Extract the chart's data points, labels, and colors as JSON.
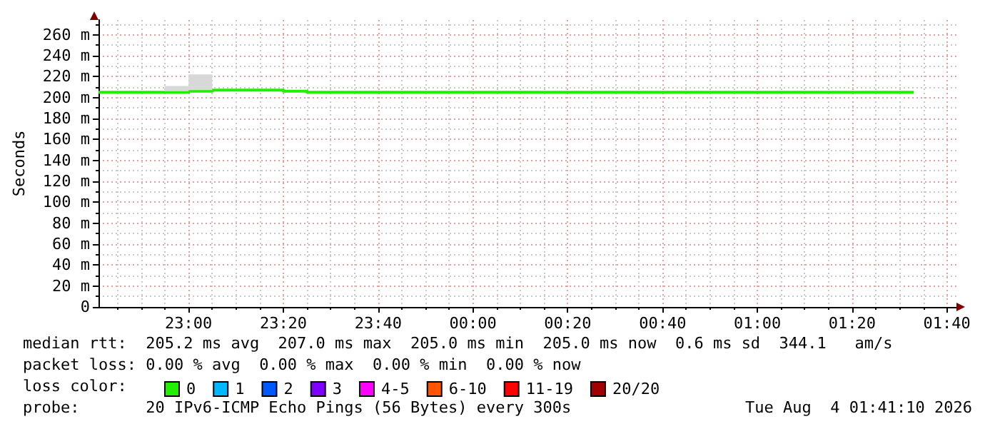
{
  "chart_data": {
    "type": "line",
    "ylabel": "Seconds",
    "legend_title": "loss color:",
    "x": [
      "2026-08-03T22:41",
      "2026-08-03T22:55",
      "2026-08-03T22:55",
      "2026-08-03T23:00",
      "2026-08-03T23:00",
      "2026-08-03T23:05",
      "2026-08-03T23:05",
      "2026-08-03T23:20",
      "2026-08-03T23:20",
      "2026-08-03T23:25",
      "2026-08-03T23:25",
      "2026-08-04T01:33"
    ],
    "series": [
      {
        "name": "0",
        "color": "#22ee00",
        "values": [
          205,
          205,
          205,
          205,
          206,
          206,
          207,
          207,
          206,
          206,
          205,
          205
        ],
        "lower": [
          null,
          null,
          206,
          206,
          207,
          207,
          null,
          null,
          null,
          null,
          null,
          null
        ],
        "upper": [
          null,
          null,
          211,
          211,
          222,
          222,
          null,
          null,
          null,
          null,
          null,
          null
        ]
      },
      {
        "name": "1",
        "color": "#00b8ff",
        "values": [
          null,
          null,
          null,
          null,
          null,
          null,
          null,
          null,
          null,
          null,
          null,
          null
        ]
      },
      {
        "name": "2",
        "color": "#0059ff",
        "values": [
          null,
          null,
          null,
          null,
          null,
          null,
          null,
          null,
          null,
          null,
          null,
          null
        ]
      },
      {
        "name": "3",
        "color": "#7e00ff",
        "values": [
          null,
          null,
          null,
          null,
          null,
          null,
          null,
          null,
          null,
          null,
          null,
          null
        ]
      },
      {
        "name": "4-5",
        "color": "#ff00ff",
        "values": [
          null,
          null,
          null,
          null,
          null,
          null,
          null,
          null,
          null,
          null,
          null,
          null
        ]
      },
      {
        "name": "6-10",
        "color": "#ff5500",
        "values": [
          null,
          null,
          null,
          null,
          null,
          null,
          null,
          null,
          null,
          null,
          null,
          null
        ]
      },
      {
        "name": "11-19",
        "color": "#ff0000",
        "values": [
          null,
          null,
          null,
          null,
          null,
          null,
          null,
          null,
          null,
          null,
          null,
          null
        ]
      },
      {
        "name": "20/20",
        "color": "#a10000",
        "values": [
          null,
          null,
          null,
          null,
          null,
          null,
          null,
          null,
          null,
          null,
          null,
          null
        ]
      }
    ],
    "xlim": [
      "2026-08-03T22:41",
      "2026-08-04T01:42"
    ],
    "xticks": [
      {
        "value": "2026-08-03T22:45",
        "label": null
      },
      {
        "value": "2026-08-03T22:50",
        "label": null
      },
      {
        "value": "2026-08-03T22:55",
        "label": null
      },
      {
        "value": "2026-08-03T23:00",
        "label": "23:00"
      },
      {
        "value": "2026-08-03T23:05",
        "label": null
      },
      {
        "value": "2026-08-03T23:10",
        "label": null
      },
      {
        "value": "2026-08-03T23:15",
        "label": null
      },
      {
        "value": "2026-08-03T23:20",
        "label": "23:20"
      },
      {
        "value": "2026-08-03T23:25",
        "label": null
      },
      {
        "value": "2026-08-03T23:30",
        "label": null
      },
      {
        "value": "2026-08-03T23:35",
        "label": null
      },
      {
        "value": "2026-08-03T23:40",
        "label": "23:40"
      },
      {
        "value": "2026-08-03T23:45",
        "label": null
      },
      {
        "value": "2026-08-03T23:50",
        "label": null
      },
      {
        "value": "2026-08-03T23:55",
        "label": null
      },
      {
        "value": "2026-08-04T00:00",
        "label": "00:00"
      },
      {
        "value": "2026-08-04T00:05",
        "label": null
      },
      {
        "value": "2026-08-04T00:10",
        "label": null
      },
      {
        "value": "2026-08-04T00:15",
        "label": null
      },
      {
        "value": "2026-08-04T00:20",
        "label": "00:20"
      },
      {
        "value": "2026-08-04T00:25",
        "label": null
      },
      {
        "value": "2026-08-04T00:30",
        "label": null
      },
      {
        "value": "2026-08-04T00:35",
        "label": null
      },
      {
        "value": "2026-08-04T00:40",
        "label": "00:40"
      },
      {
        "value": "2026-08-04T00:45",
        "label": null
      },
      {
        "value": "2026-08-04T00:50",
        "label": null
      },
      {
        "value": "2026-08-04T00:55",
        "label": null
      },
      {
        "value": "2026-08-04T01:00",
        "label": "01:00"
      },
      {
        "value": "2026-08-04T01:05",
        "label": null
      },
      {
        "value": "2026-08-04T01:10",
        "label": null
      },
      {
        "value": "2026-08-04T01:15",
        "label": null
      },
      {
        "value": "2026-08-04T01:20",
        "label": "01:20"
      },
      {
        "value": "2026-08-04T01:25",
        "label": null
      },
      {
        "value": "2026-08-04T01:30",
        "label": null
      },
      {
        "value": "2026-08-04T01:35",
        "label": null
      },
      {
        "value": "2026-08-04T01:40",
        "label": "01:40"
      }
    ],
    "ylim": [
      0,
      274
    ],
    "yticks": [
      {
        "value": 0,
        "label": "0"
      },
      {
        "value": 10,
        "label": null
      },
      {
        "value": 20,
        "label": "20 m"
      },
      {
        "value": 30,
        "label": null
      },
      {
        "value": 40,
        "label": "40 m"
      },
      {
        "value": 50,
        "label": null
      },
      {
        "value": 60,
        "label": "60 m"
      },
      {
        "value": 70,
        "label": null
      },
      {
        "value": 80,
        "label": "80 m"
      },
      {
        "value": 90,
        "label": null
      },
      {
        "value": 100,
        "label": "100 m"
      },
      {
        "value": 110,
        "label": null
      },
      {
        "value": 120,
        "label": "120 m"
      },
      {
        "value": 130,
        "label": null
      },
      {
        "value": 140,
        "label": "140 m"
      },
      {
        "value": 150,
        "label": null
      },
      {
        "value": 160,
        "label": "160 m"
      },
      {
        "value": 170,
        "label": null
      },
      {
        "value": 180,
        "label": "180 m"
      },
      {
        "value": 190,
        "label": null
      },
      {
        "value": 200,
        "label": "200 m"
      },
      {
        "value": 210,
        "label": null
      },
      {
        "value": 220,
        "label": "220 m"
      },
      {
        "value": 230,
        "label": null
      },
      {
        "value": 240,
        "label": "240 m"
      },
      {
        "value": 250,
        "label": null
      },
      {
        "value": 260,
        "label": "260 m"
      },
      {
        "value": 270,
        "label": null
      }
    ],
    "grid": true,
    "legend": "bottom left",
    "marker": "none",
    "line_style": "solid",
    "annotations": [
      "median rtt:  205.2 ms avg  207.0 ms max  205.0 ms min  205.0 ms now  0.6 ms sd  344.1   am/s",
      "packet loss: 0.00 % avg  0.00 % max  0.00 % min  0.00 % now",
      "probe:       20 IPv6-ICMP Echo Pings (56 Bytes) every 300s",
      "Tue Aug  4 01:41:10 2026"
    ]
  }
}
